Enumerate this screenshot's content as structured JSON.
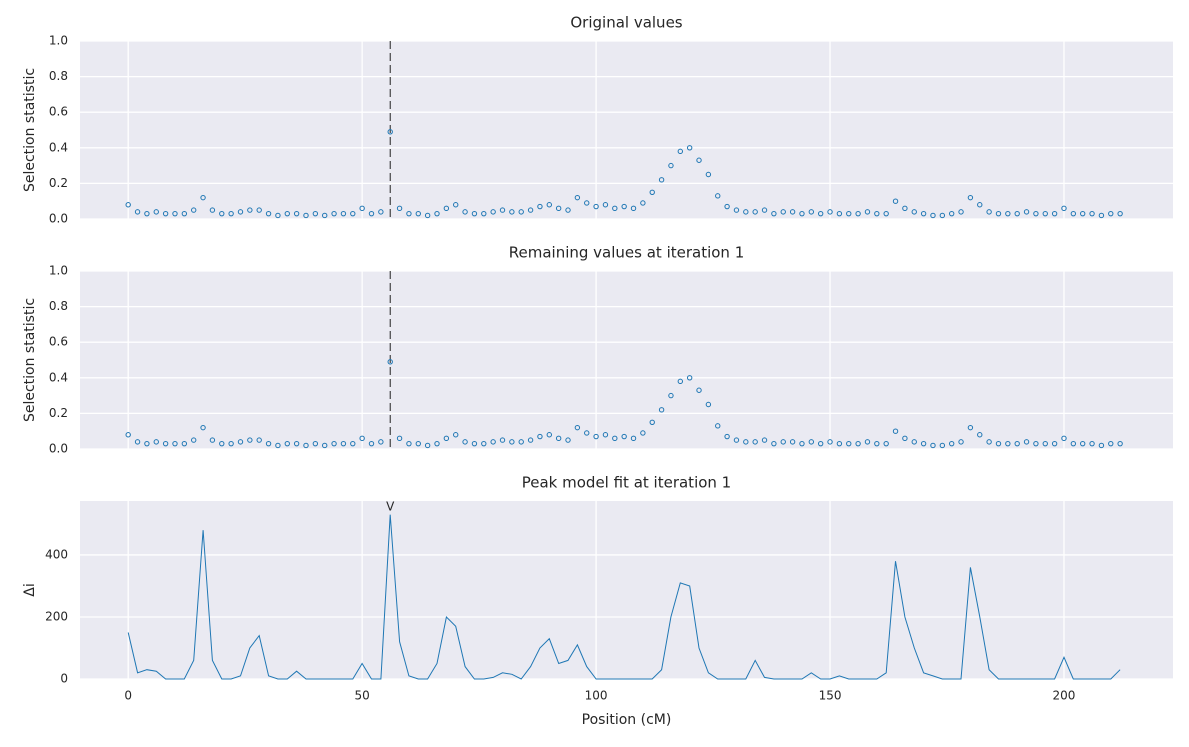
{
  "chart_data": [
    {
      "type": "scatter",
      "title": "Original values",
      "ylabel": "Selection statistic",
      "color": "#1f77b4",
      "xlim": [
        -10.3,
        223.3
      ],
      "xticks": [
        0,
        50,
        100,
        150,
        200
      ],
      "ylim": [
        0,
        1.0
      ],
      "yticks": [
        {
          "value": 0,
          "label": "0.0"
        },
        0.2,
        0.4,
        0.6,
        0.8,
        {
          "value": 1,
          "label": "1.0"
        }
      ],
      "grid": true,
      "vline": 56,
      "x": [
        0,
        2,
        4,
        6,
        8,
        10,
        12,
        14,
        16,
        18,
        20,
        22,
        24,
        26,
        28,
        30,
        32,
        34,
        36,
        38,
        40,
        42,
        44,
        46,
        48,
        50,
        52,
        54,
        56,
        58,
        60,
        62,
        64,
        66,
        68,
        70,
        72,
        74,
        76,
        78,
        80,
        82,
        84,
        86,
        88,
        90,
        92,
        94,
        96,
        98,
        100,
        102,
        104,
        106,
        108,
        110,
        112,
        114,
        116,
        118,
        120,
        122,
        124,
        126,
        128,
        130,
        132,
        134,
        136,
        138,
        140,
        142,
        144,
        146,
        148,
        150,
        152,
        154,
        156,
        158,
        160,
        162,
        164,
        166,
        168,
        170,
        172,
        174,
        176,
        178,
        180,
        182,
        184,
        186,
        188,
        190,
        192,
        194,
        196,
        198,
        200,
        202,
        204,
        206,
        208,
        210,
        212
      ],
      "values": [
        0.08,
        0.04,
        0.03,
        0.04,
        0.03,
        0.03,
        0.03,
        0.05,
        0.12,
        0.05,
        0.03,
        0.03,
        0.04,
        0.05,
        0.05,
        0.03,
        0.02,
        0.03,
        0.03,
        0.02,
        0.03,
        0.02,
        0.03,
        0.03,
        0.03,
        0.06,
        0.03,
        0.04,
        0.49,
        0.06,
        0.03,
        0.03,
        0.02,
        0.03,
        0.06,
        0.08,
        0.04,
        0.03,
        0.03,
        0.04,
        0.05,
        0.04,
        0.04,
        0.05,
        0.07,
        0.08,
        0.06,
        0.05,
        0.12,
        0.09,
        0.07,
        0.08,
        0.06,
        0.07,
        0.06,
        0.09,
        0.15,
        0.22,
        0.3,
        0.38,
        0.4,
        0.33,
        0.25,
        0.13,
        0.07,
        0.05,
        0.04,
        0.04,
        0.05,
        0.03,
        0.04,
        0.04,
        0.03,
        0.04,
        0.03,
        0.04,
        0.03,
        0.03,
        0.03,
        0.04,
        0.03,
        0.03,
        0.1,
        0.06,
        0.04,
        0.03,
        0.02,
        0.02,
        0.03,
        0.04,
        0.12,
        0.08,
        0.04,
        0.03,
        0.03,
        0.03,
        0.04,
        0.03,
        0.03,
        0.03,
        0.06,
        0.03,
        0.03,
        0.03,
        0.02,
        0.03,
        0.03
      ]
    },
    {
      "type": "scatter",
      "title": "Remaining values at iteration 1",
      "ylabel": "Selection statistic",
      "color": "#1f77b4",
      "xlim": [
        -10.3,
        223.3
      ],
      "xticks": [
        0,
        50,
        100,
        150,
        200
      ],
      "ylim": [
        0,
        1.0
      ],
      "yticks": [
        {
          "value": 0,
          "label": "0.0"
        },
        0.2,
        0.4,
        0.6,
        0.8,
        {
          "value": 1,
          "label": "1.0"
        }
      ],
      "grid": true,
      "vline": 56,
      "x": [
        0,
        2,
        4,
        6,
        8,
        10,
        12,
        14,
        16,
        18,
        20,
        22,
        24,
        26,
        28,
        30,
        32,
        34,
        36,
        38,
        40,
        42,
        44,
        46,
        48,
        50,
        52,
        54,
        56,
        58,
        60,
        62,
        64,
        66,
        68,
        70,
        72,
        74,
        76,
        78,
        80,
        82,
        84,
        86,
        88,
        90,
        92,
        94,
        96,
        98,
        100,
        102,
        104,
        106,
        108,
        110,
        112,
        114,
        116,
        118,
        120,
        122,
        124,
        126,
        128,
        130,
        132,
        134,
        136,
        138,
        140,
        142,
        144,
        146,
        148,
        150,
        152,
        154,
        156,
        158,
        160,
        162,
        164,
        166,
        168,
        170,
        172,
        174,
        176,
        178,
        180,
        182,
        184,
        186,
        188,
        190,
        192,
        194,
        196,
        198,
        200,
        202,
        204,
        206,
        208,
        210,
        212
      ],
      "values": [
        0.08,
        0.04,
        0.03,
        0.04,
        0.03,
        0.03,
        0.03,
        0.05,
        0.12,
        0.05,
        0.03,
        0.03,
        0.04,
        0.05,
        0.05,
        0.03,
        0.02,
        0.03,
        0.03,
        0.02,
        0.03,
        0.02,
        0.03,
        0.03,
        0.03,
        0.06,
        0.03,
        0.04,
        0.49,
        0.06,
        0.03,
        0.03,
        0.02,
        0.03,
        0.06,
        0.08,
        0.04,
        0.03,
        0.03,
        0.04,
        0.05,
        0.04,
        0.04,
        0.05,
        0.07,
        0.08,
        0.06,
        0.05,
        0.12,
        0.09,
        0.07,
        0.08,
        0.06,
        0.07,
        0.06,
        0.09,
        0.15,
        0.22,
        0.3,
        0.38,
        0.4,
        0.33,
        0.25,
        0.13,
        0.07,
        0.05,
        0.04,
        0.04,
        0.05,
        0.03,
        0.04,
        0.04,
        0.03,
        0.04,
        0.03,
        0.04,
        0.03,
        0.03,
        0.03,
        0.04,
        0.03,
        0.03,
        0.1,
        0.06,
        0.04,
        0.03,
        0.02,
        0.02,
        0.03,
        0.04,
        0.12,
        0.08,
        0.04,
        0.03,
        0.03,
        0.03,
        0.04,
        0.03,
        0.03,
        0.03,
        0.06,
        0.03,
        0.03,
        0.03,
        0.02,
        0.03,
        0.03
      ]
    },
    {
      "type": "line",
      "title": "Peak model fit at iteration 1",
      "ylabel": "Δi",
      "xlabel": "Position (cM)",
      "color": "#1f77b4",
      "xlim": [
        -10.3,
        223.3
      ],
      "xticks": [
        0,
        50,
        100,
        150,
        200
      ],
      "ylim": [
        0,
        574
      ],
      "yticks": [
        0,
        200,
        400
      ],
      "grid": true,
      "annotation": {
        "x": 56,
        "text": "V"
      },
      "x": [
        0,
        2,
        4,
        6,
        8,
        10,
        12,
        14,
        16,
        18,
        20,
        22,
        24,
        26,
        28,
        30,
        32,
        34,
        36,
        38,
        40,
        42,
        44,
        46,
        48,
        50,
        52,
        54,
        56,
        58,
        60,
        62,
        64,
        66,
        68,
        70,
        72,
        74,
        76,
        78,
        80,
        82,
        84,
        86,
        88,
        90,
        92,
        94,
        96,
        98,
        100,
        102,
        104,
        106,
        108,
        110,
        112,
        114,
        116,
        118,
        120,
        122,
        124,
        126,
        128,
        130,
        132,
        134,
        136,
        138,
        140,
        142,
        144,
        146,
        148,
        150,
        152,
        154,
        156,
        158,
        160,
        162,
        164,
        166,
        168,
        170,
        172,
        174,
        176,
        178,
        180,
        182,
        184,
        186,
        188,
        190,
        192,
        194,
        196,
        198,
        200,
        202,
        204,
        206,
        208,
        210,
        212
      ],
      "values": [
        150,
        20,
        30,
        25,
        0,
        0,
        0,
        60,
        480,
        60,
        0,
        0,
        10,
        100,
        140,
        10,
        0,
        0,
        25,
        0,
        0,
        0,
        0,
        0,
        0,
        50,
        0,
        0,
        530,
        120,
        10,
        0,
        0,
        50,
        200,
        170,
        40,
        0,
        0,
        5,
        20,
        15,
        0,
        40,
        100,
        130,
        50,
        60,
        110,
        40,
        0,
        0,
        0,
        0,
        0,
        0,
        0,
        30,
        200,
        310,
        300,
        100,
        20,
        0,
        0,
        0,
        0,
        60,
        5,
        0,
        0,
        0,
        0,
        20,
        0,
        0,
        10,
        0,
        0,
        0,
        0,
        20,
        380,
        200,
        100,
        20,
        10,
        0,
        0,
        0,
        360,
        200,
        30,
        0,
        0,
        0,
        0,
        0,
        0,
        0,
        70,
        0,
        0,
        0,
        0,
        0,
        30
      ]
    }
  ]
}
